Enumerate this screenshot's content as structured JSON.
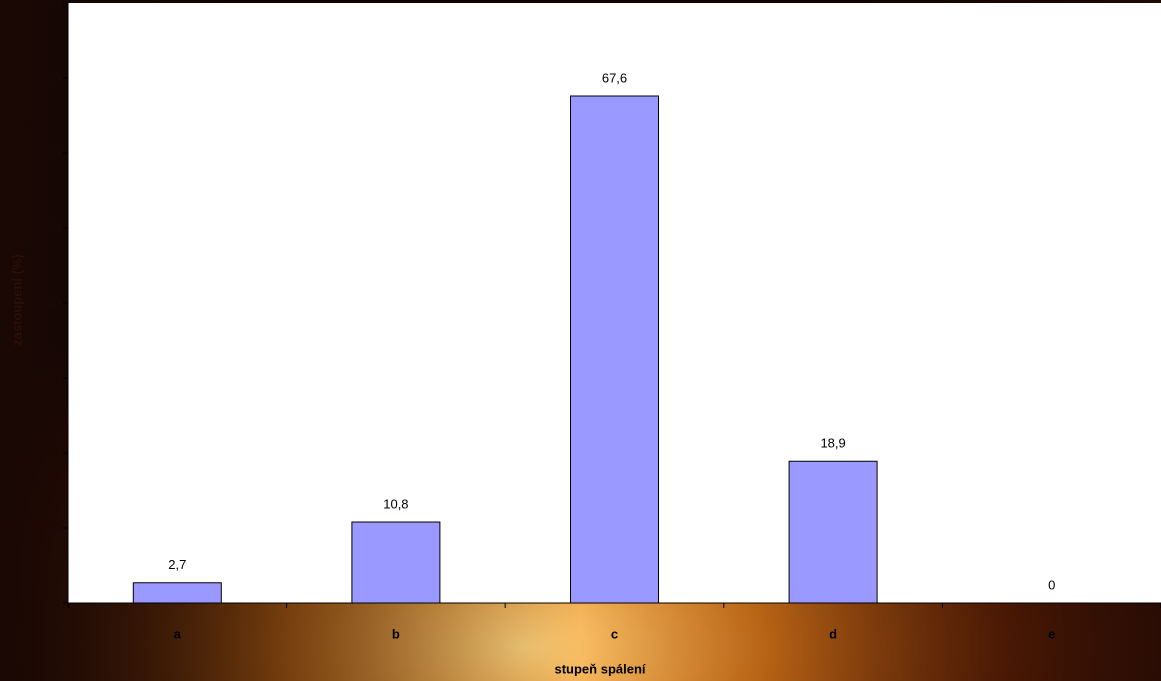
{
  "chart_data": {
    "type": "bar",
    "x_label": "stupeň spálení",
    "y_label": "zastoupení (%)",
    "categories": [
      "a",
      "b",
      "c",
      "d",
      "e"
    ],
    "values": [
      2.7,
      10.8,
      67.6,
      18.9,
      0
    ],
    "value_labels": [
      "2,7",
      "10,8",
      "67,6",
      "18,9",
      "0"
    ],
    "color": "#9999ff",
    "ylim": [
      0,
      80
    ],
    "yticks": [
      0,
      10,
      20,
      30,
      40,
      50,
      60,
      70,
      80
    ]
  }
}
